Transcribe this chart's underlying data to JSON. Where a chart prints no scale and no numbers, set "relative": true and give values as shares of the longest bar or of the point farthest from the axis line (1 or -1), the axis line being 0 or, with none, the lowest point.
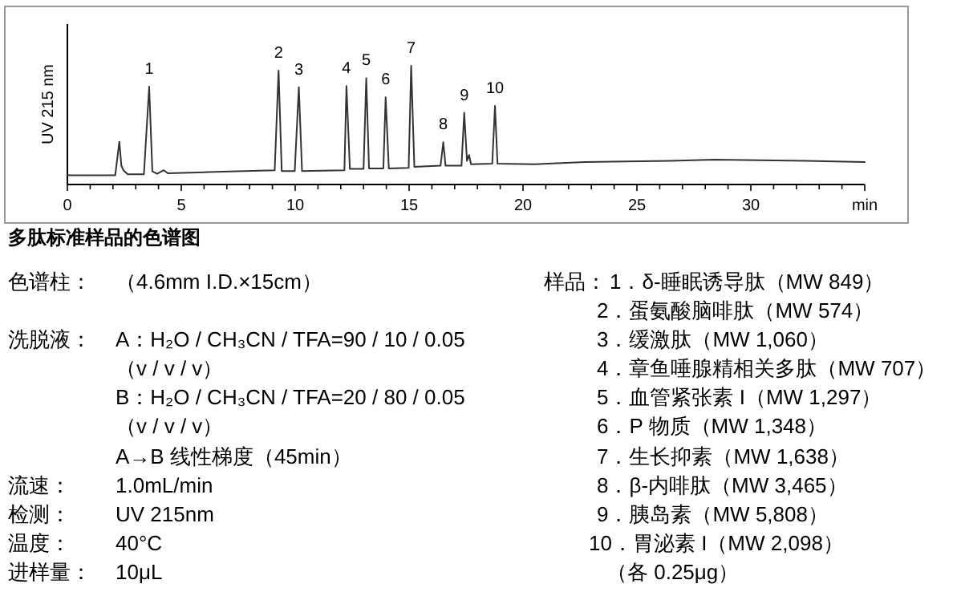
{
  "chart_data": {
    "type": "line",
    "relative": true,
    "title": "多肽标准样品的色谱图",
    "ylabel": "UV 215 nm",
    "xlim": [
      0,
      35
    ],
    "xticks": [
      0,
      {
        "value": 1,
        "label": null
      },
      {
        "value": 2,
        "label": null
      },
      {
        "value": 3,
        "label": null
      },
      {
        "value": 4,
        "label": null
      },
      5,
      {
        "value": 6,
        "label": null
      },
      {
        "value": 7,
        "label": null
      },
      {
        "value": 8,
        "label": null
      },
      {
        "value": 9,
        "label": null
      },
      10,
      {
        "value": 11,
        "label": null
      },
      {
        "value": 12,
        "label": null
      },
      {
        "value": 13,
        "label": null
      },
      {
        "value": 14,
        "label": null
      },
      15,
      {
        "value": 16,
        "label": null
      },
      {
        "value": 17,
        "label": null
      },
      {
        "value": 18,
        "label": null
      },
      {
        "value": 19,
        "label": null
      },
      20,
      {
        "value": 21,
        "label": null
      },
      {
        "value": 22,
        "label": null
      },
      {
        "value": 23,
        "label": null
      },
      {
        "value": 24,
        "label": null
      },
      25,
      {
        "value": 26,
        "label": null
      },
      {
        "value": 27,
        "label": null
      },
      {
        "value": 28,
        "label": null
      },
      {
        "value": 29,
        "label": null
      },
      30,
      {
        "value": 31,
        "label": null
      },
      {
        "value": 32,
        "label": null
      },
      {
        "value": 33,
        "label": null
      },
      {
        "value": 34,
        "label": null
      },
      {
        "value": 35,
        "label": "min"
      }
    ],
    "grid": false,
    "marker": "none",
    "line_style": "solid",
    "series": [
      {
        "color": "#333333",
        "x": [
          0,
          2.1,
          2.28,
          2.37,
          2.46,
          2.65,
          3.36,
          3.59,
          3.73,
          3.94,
          4.23,
          4.41,
          6.17,
          9.1,
          9.27,
          9.41,
          9.98,
          10.16,
          10.3,
          12.16,
          12.25,
          12.4,
          13.0,
          13.12,
          13.24,
          13.87,
          13.97,
          14.11,
          14.98,
          15.09,
          15.23,
          16.38,
          16.5,
          16.6,
          17.3,
          17.42,
          17.54,
          17.63,
          17.72,
          18.65,
          18.77,
          18.88,
          20.5,
          22.7,
          26.5,
          28.4,
          32.4,
          35.0
        ],
        "values": [
          0.077,
          0.077,
          0.36,
          0.16,
          0.12,
          0.086,
          0.086,
          0.824,
          0.11,
          0.09,
          0.12,
          0.095,
          0.104,
          0.12,
          0.959,
          0.113,
          0.113,
          0.82,
          0.113,
          0.12,
          0.829,
          0.131,
          0.131,
          0.896,
          0.135,
          0.135,
          0.734,
          0.135,
          0.14,
          1.0,
          0.149,
          0.158,
          0.356,
          0.158,
          0.158,
          0.604,
          0.2,
          0.248,
          0.171,
          0.176,
          0.662,
          0.176,
          0.171,
          0.19,
          0.2,
          0.21,
          0.2,
          0.19
        ]
      }
    ],
    "annotations": [
      {
        "text": "1",
        "x": 3.59,
        "y": 0.824
      },
      {
        "text": "2",
        "x": 9.27,
        "y": 0.959
      },
      {
        "text": "3",
        "x": 10.16,
        "y": 0.82
      },
      {
        "text": "4",
        "x": 12.25,
        "y": 0.829
      },
      {
        "text": "5",
        "x": 13.12,
        "y": 0.896
      },
      {
        "text": "6",
        "x": 13.97,
        "y": 0.734
      },
      {
        "text": "7",
        "x": 15.09,
        "y": 1.0
      },
      {
        "text": "8",
        "x": 16.5,
        "y": 0.356
      },
      {
        "text": "9",
        "x": 17.42,
        "y": 0.604
      },
      {
        "text": "10",
        "x": 18.77,
        "y": 0.662
      },
      "色谱柱：",
      "（4.6mm I.D.×15cm）",
      "洗脱液：",
      "A：H₂O / CH₃CN / TFA=90 / 10 / 0.05",
      "（v / v / v）",
      "B：H₂O / CH₃CN / TFA=20 / 80 / 0.05",
      "（v / v / v）",
      "A→B 线性梯度（45min）",
      "流速：",
      "1.0mL/min",
      "检测：",
      "UV 215nm",
      "温度：",
      "40°C",
      "进样量：",
      "10μL",
      "样品：",
      "1．δ-睡眠诱导肽（MW 849）",
      "2．蛋氨酸脑啡肽（MW 574）",
      "3．缓激肽（MW 1,060）",
      "4．章鱼唾腺精相关多肽（MW 707）",
      "5．血管紧张素 I（MW 1,297）",
      "6．P 物质（MW 1,348）",
      "7．生长抑素（MW 1,638）",
      "8．β-内啡肽（MW 3,465）",
      "9．胰岛素（MW 5,808）",
      "10．胃泌素 I（MW 2,098）",
      "（各 0.25μg）"
    ]
  }
}
